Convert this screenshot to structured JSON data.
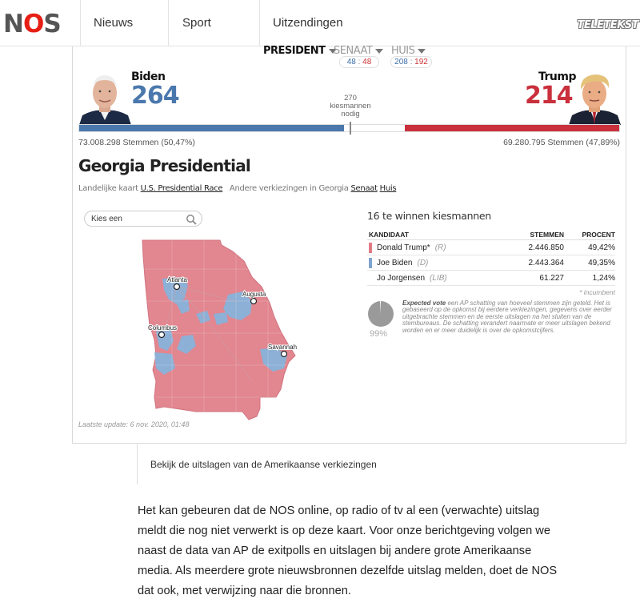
{
  "nav": {
    "logo": "NOS",
    "items": [
      "Nieuws",
      "Sport",
      "Uitzendingen"
    ],
    "teletekst": "TELETEKST"
  },
  "race_tabs": {
    "president": "PRESIDENT",
    "senaat": "SENAAT",
    "senaat_d": "48",
    "senaat_r": "48",
    "huis": "HUIS",
    "huis_d": "208",
    "huis_r": "192",
    "sep": ":"
  },
  "candidates": {
    "biden": {
      "name": "Biden",
      "electoral": "264",
      "popular": "73.008.298 Stemmen (50,47%)"
    },
    "trump": {
      "name": "Trump",
      "electoral": "214",
      "popular": "69.280.795 Stemmen (47,89%)"
    },
    "needed_line1": "270",
    "needed_line2": "kiesmannen",
    "needed_line3": "nodig",
    "biden_share": 0.4907,
    "trump_share": 0.3978
  },
  "state": {
    "title": "Georgia Presidential",
    "links_prefix": "Landelijke kaart",
    "link_national": "U.S. Presidential Race",
    "links_other": "Andere verkiezingen in Georgia",
    "link_senaat": "Senaat",
    "link_huis": "Huis",
    "search_placeholder": "Kies een",
    "cities": [
      "Atlanta",
      "Augusta",
      "Columbus",
      "Savannah"
    ],
    "updated": "Laatste update: 6 nov. 2020, 01:48"
  },
  "results": {
    "heading": "16 te winnen kiesmannen",
    "col_candidate": "KANDIDAAT",
    "col_votes": "STEMMEN",
    "col_percent": "PROCENT",
    "rows": [
      {
        "name": "Donald Trump*",
        "party": "(R)",
        "votes": "2.446.850",
        "percent": "49,42%",
        "color": "#e07b86"
      },
      {
        "name": "Joe Biden",
        "party": "(D)",
        "votes": "2.443.364",
        "percent": "49,35%",
        "color": "#7ea4d0"
      },
      {
        "name": "Jo Jorgensen",
        "party": "(LIB)",
        "votes": "61.227",
        "percent": "1,24%",
        "color": "#ffffff"
      }
    ],
    "incumbent_note": "* incumbent",
    "expected_pct": "99%",
    "expected_fraction": 0.99,
    "expected_label": "Expected vote",
    "expected_text": " een AP schatting van hoeveel stemmen zijn geteld. Het is gebaseerd op de opkomst bij eerdere verkiezingen, gegevens over eerder uitgebrachte stemmen en de eerste uitslagen na het sluiten van de stembureaus. De schatting verandert naarmate er meer uitslagen bekend worden en er meer duidelijk is over de opkomstcijfers."
  },
  "caption": "Bekijk de uitslagen van de Amerikaanse verkiezingen",
  "paragraph": "Het kan gebeuren dat de NOS online, op radio of tv al een (verwachte) uitslag meldt die nog niet verwerkt is op deze kaart. Voor onze berichtgeving volgen we naast de data van AP de exitpolls en uitslagen bij andere grote Amerikaanse media. Als meerdere grote nieuwsbronnen dezelfde uitslag melden, doet de NOS dat ook, met verwijzing naar die bronnen.",
  "colors": {
    "dem": "#4a78ad",
    "rep": "#c9303c",
    "map_red": "#e28690",
    "map_blue": "#8db0d6",
    "nos_red": "#e61e14"
  }
}
